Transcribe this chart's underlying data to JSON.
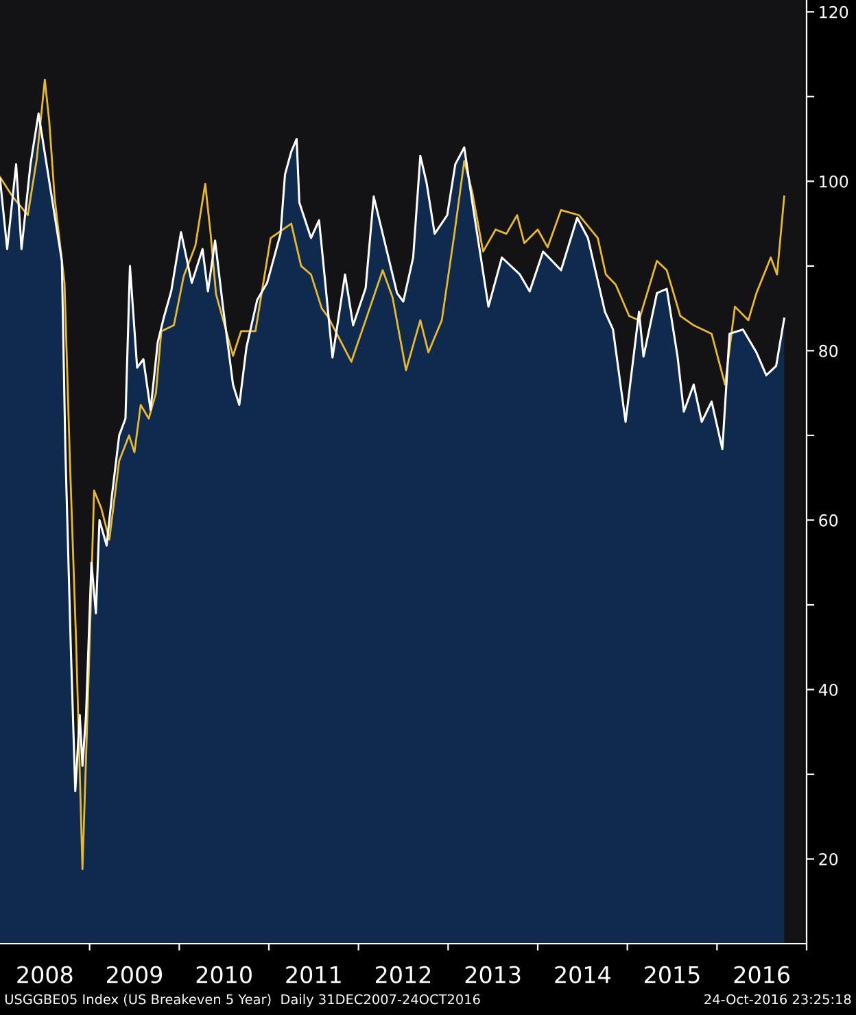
{
  "chart_data": {
    "type": "line",
    "series": [
      {
        "type": "area",
        "color": "#ffffff",
        "x": [
          2008.0,
          2008.08,
          2008.18,
          2008.24,
          2008.34,
          2008.43,
          2008.69,
          2008.73,
          2008.79,
          2008.84,
          2008.89,
          2008.92,
          2008.96,
          2009.02,
          2009.07,
          2009.11,
          2009.19,
          2009.25,
          2009.33,
          2009.4,
          2009.45,
          2009.53,
          2009.6,
          2009.68,
          2009.76,
          2009.83,
          2009.91,
          2010.02,
          2010.14,
          2010.26,
          2010.32,
          2010.4,
          2010.49,
          2010.6,
          2010.67,
          2010.75,
          2010.87,
          2010.98,
          2011.13,
          2011.18,
          2011.25,
          2011.31,
          2011.34,
          2011.47,
          2011.56,
          2011.62,
          2011.71,
          2011.85,
          2011.94,
          2012.08,
          2012.17,
          2012.27,
          2012.43,
          2012.5,
          2012.61,
          2012.69,
          2012.76,
          2012.85,
          2012.99,
          2013.08,
          2013.18,
          2013.27,
          2013.45,
          2013.6,
          2013.8,
          2013.91,
          2014.06,
          2014.26,
          2014.44,
          2014.56,
          2014.75,
          2014.84,
          2014.98,
          2015.13,
          2015.18,
          2015.33,
          2015.44,
          2015.56,
          2015.63,
          2015.74,
          2015.83,
          2015.94,
          2016.06,
          2016.14,
          2016.29,
          2016.44,
          2016.55,
          2016.66,
          2016.75
        ],
        "values": [
          100.3,
          92,
          102,
          92,
          102,
          108,
          90.6,
          68,
          45,
          28,
          37,
          31,
          37,
          55,
          49,
          60,
          57,
          63,
          70,
          72,
          90,
          78,
          79,
          73,
          81,
          84,
          87,
          94,
          88,
          92,
          87,
          93,
          85,
          76,
          73.6,
          80.4,
          86,
          88,
          93.8,
          100.8,
          103.5,
          105,
          97.5,
          93.3,
          95.4,
          89,
          79.2,
          89,
          83,
          87.4,
          98.2,
          93.8,
          86.8,
          85.8,
          91,
          103,
          99.8,
          93.8,
          96,
          102,
          104,
          97.5,
          85.2,
          91,
          89,
          87,
          91.7,
          89.5,
          95.7,
          93.3,
          84.6,
          82.5,
          71.6,
          84.6,
          79.3,
          86.8,
          87.3,
          79.3,
          72.8,
          76,
          71.6,
          74,
          68.4,
          82,
          82.5,
          79.8,
          77.1,
          78.2,
          83.8
        ]
      },
      {
        "color": "#e8b830",
        "x": [
          2008.0,
          2008.14,
          2008.31,
          2008.41,
          2008.5,
          2008.55,
          2008.61,
          2008.72,
          2008.78,
          2008.85,
          2008.92,
          2008.99,
          2009.05,
          2009.13,
          2009.22,
          2009.33,
          2009.44,
          2009.5,
          2009.57,
          2009.66,
          2009.74,
          2009.8,
          2009.94,
          2010.05,
          2010.18,
          2010.29,
          2010.35,
          2010.41,
          2010.6,
          2010.69,
          2010.85,
          2011.02,
          2011.25,
          2011.36,
          2011.47,
          2011.59,
          2011.66,
          2011.92,
          2012.08,
          2012.27,
          2012.38,
          2012.53,
          2012.69,
          2012.78,
          2012.93,
          2013.07,
          2013.18,
          2013.27,
          2013.39,
          2013.53,
          2013.65,
          2013.77,
          2013.85,
          2014.0,
          2014.11,
          2014.26,
          2014.46,
          2014.67,
          2014.76,
          2014.87,
          2015.02,
          2015.13,
          2015.33,
          2015.44,
          2015.59,
          2015.74,
          2015.94,
          2016.09,
          2016.2,
          2016.35,
          2016.44,
          2016.6,
          2016.67,
          2016.75
        ],
        "values": [
          100.5,
          98.2,
          96,
          102.6,
          112,
          107,
          98,
          88,
          67,
          45.4,
          18.8,
          41.8,
          63.5,
          61.4,
          57.7,
          67,
          70,
          68,
          73.6,
          72,
          75,
          82.3,
          83,
          88.8,
          92.4,
          99.7,
          93.8,
          86.7,
          79.4,
          82.3,
          82.3,
          93.3,
          95,
          90,
          89,
          85,
          84,
          78.7,
          83.6,
          89.5,
          86.3,
          77.7,
          83.6,
          79.8,
          83.6,
          93.8,
          102.4,
          98.7,
          91.7,
          94.3,
          93.8,
          96,
          92.7,
          94.3,
          92.2,
          96.6,
          96,
          93.3,
          89,
          87.8,
          84.1,
          83.6,
          90.6,
          89.5,
          84.1,
          83,
          82,
          76,
          85.2,
          83.6,
          86.8,
          91,
          89,
          98.2
        ]
      }
    ],
    "xlim": [
      2008,
      2017
    ],
    "xticks": [
      {
        "value": 2008.5,
        "label": "2008"
      },
      {
        "value": 2009.5,
        "label": "2009"
      },
      {
        "value": 2010.5,
        "label": "2010"
      },
      {
        "value": 2011.5,
        "label": "2011"
      },
      {
        "value": 2012.5,
        "label": "2012"
      },
      {
        "value": 2013.5,
        "label": "2013"
      },
      {
        "value": 2014.5,
        "label": "2014"
      },
      {
        "value": 2015.5,
        "label": "2015"
      },
      {
        "value": 2016.5,
        "label": "2016"
      },
      {
        "value": 2009,
        "label": null
      },
      {
        "value": 2010,
        "label": null
      },
      {
        "value": 2011,
        "label": null
      },
      {
        "value": 2012,
        "label": null
      },
      {
        "value": 2013,
        "label": null
      },
      {
        "value": 2014,
        "label": null
      },
      {
        "value": 2015,
        "label": null
      },
      {
        "value": 2016,
        "label": null
      },
      {
        "value": 2017,
        "label": null
      }
    ],
    "ylim": [
      10,
      121.4
    ],
    "yticks": [
      20,
      {
        "value": 30,
        "label": null
      },
      40,
      {
        "value": 50,
        "label": null
      },
      60,
      {
        "value": 70,
        "label": null
      },
      80,
      {
        "value": 90,
        "label": null
      },
      100,
      {
        "value": 110,
        "label": null
      },
      120
    ],
    "grid": false,
    "legend": false,
    "annotations": [
      "USGGBE05 Index (US Breakeven 5 Year)  Daily 31DEC2007-24OCT2016",
      "24-Oct-2016 23:25:18"
    ]
  }
}
